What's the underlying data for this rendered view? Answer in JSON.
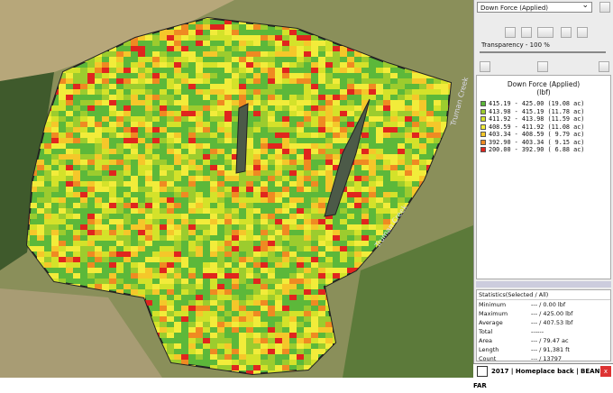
{
  "map": {
    "labels": [
      "Truman Creek",
      "Truman Creek"
    ]
  },
  "panel": {
    "layer": "Down Force (Applied)",
    "transparency": "Transparency - 100 %",
    "legend": {
      "title": "Down Force (Applied)",
      "unit": "(lbf)",
      "rows": [
        {
          "label": "415.19 - 425.00 (19.08 ac)",
          "color": "#5cb83a"
        },
        {
          "label": "413.98 - 415.19 (11.78 ac)",
          "color": "#9ccc2e"
        },
        {
          "label": "411.92 - 413.98 (11.59 ac)",
          "color": "#d4e22a"
        },
        {
          "label": "408.59 - 411.92 (11.08 ac)",
          "color": "#f2ec3a"
        },
        {
          "label": "403.34 - 408.59 ( 9.79 ac)",
          "color": "#f5c72a"
        },
        {
          "label": "392.90 - 403.34 ( 9.15 ac)",
          "color": "#ef8a22"
        },
        {
          "label": "200.00 - 392.90 ( 6.88 ac)",
          "color": "#e0251e"
        }
      ]
    },
    "statistics": {
      "title": "Statistics(Selected / All)",
      "rows": [
        [
          "Minimum",
          "--- / 0.00 lbf"
        ],
        [
          "Maximum",
          "--- / 425.00 lbf"
        ],
        [
          "Average",
          "--- / 407.53 lbf"
        ],
        [
          "Total",
          "------"
        ],
        [
          "Area",
          "--- / 79.47 ac"
        ],
        [
          "Length",
          "--- / 91,381 ft"
        ],
        [
          "Count",
          "--- / 13797"
        ]
      ]
    },
    "footer": {
      "text": "2017 | Homeplace back | BEAN FAR",
      "close": "x"
    }
  }
}
